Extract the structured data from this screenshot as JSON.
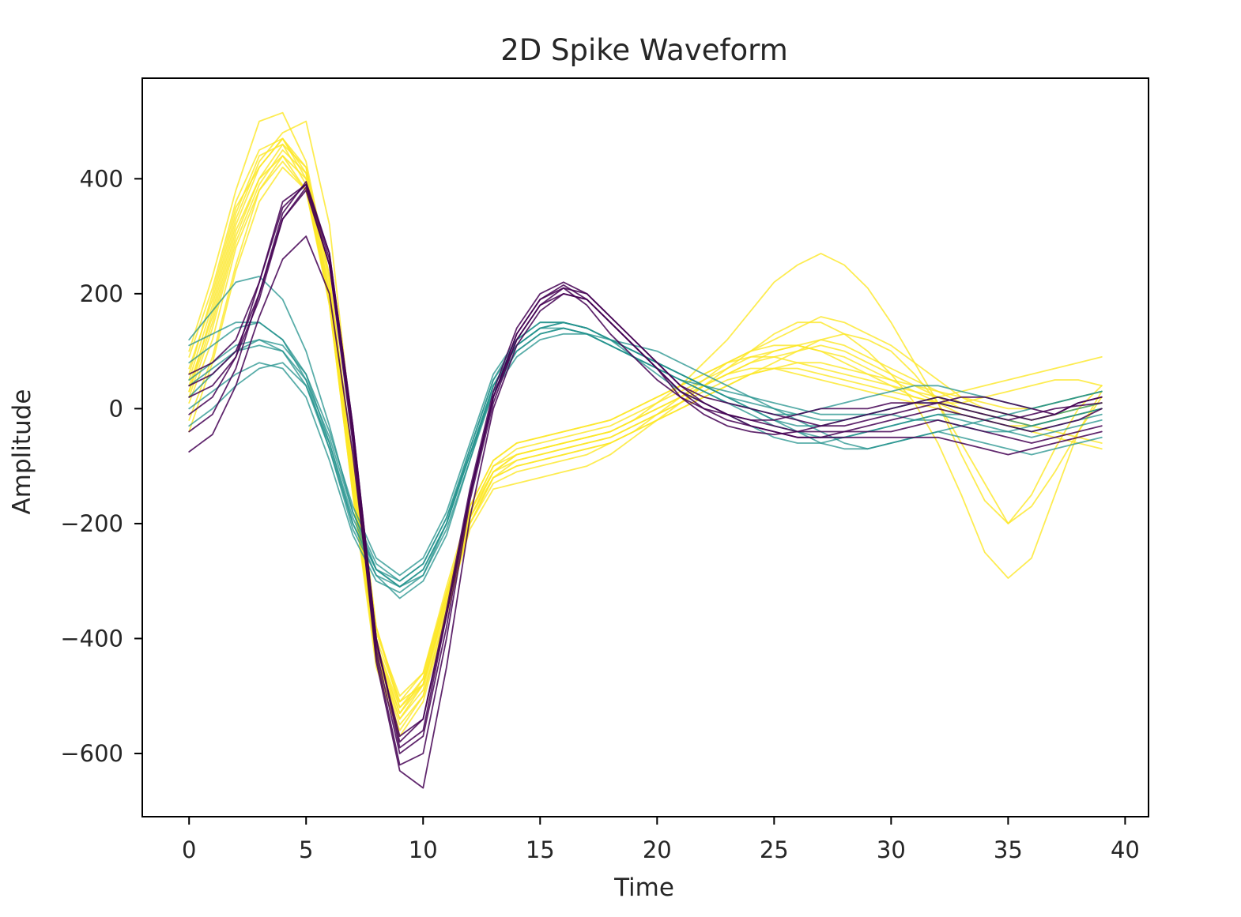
{
  "chart_data": {
    "type": "line",
    "title": "2D Spike Waveform",
    "xlabel": "Time",
    "ylabel": "Amplitude",
    "xlim": [
      -2,
      41
    ],
    "ylim": [
      -710,
      575
    ],
    "xticks": [
      0,
      5,
      10,
      15,
      20,
      25,
      30,
      35,
      40
    ],
    "yticks": [
      -600,
      -400,
      -200,
      0,
      200,
      400
    ],
    "tick_labels_x": [
      "0",
      "5",
      "10",
      "15",
      "20",
      "25",
      "30",
      "35",
      "40"
    ],
    "tick_labels_y": [
      "−600",
      "−400",
      "−200",
      "0",
      "200",
      "400"
    ],
    "grid": false,
    "legend": "none",
    "colors": {
      "purple": "#440154",
      "teal": "#21918c",
      "yellow": "#fde725",
      "axes": "#000000",
      "text": "#262626"
    },
    "series": [
      {
        "color": "purple",
        "values": [
          40,
          60,
          100,
          200,
          340,
          395,
          270,
          -30,
          -400,
          -590,
          -560,
          -360,
          -150,
          20,
          130,
          190,
          215,
          190,
          150,
          110,
          70,
          20,
          -10,
          -30,
          -40,
          -45,
          -40,
          -30,
          -20,
          -10,
          0,
          10,
          10,
          0,
          -10,
          -20,
          -10,
          0,
          5,
          10
        ]
      },
      {
        "color": "purple",
        "values": [
          -10,
          20,
          90,
          220,
          360,
          390,
          260,
          -50,
          -430,
          -620,
          -600,
          -400,
          -160,
          10,
          120,
          180,
          210,
          200,
          160,
          120,
          80,
          40,
          20,
          10,
          0,
          -10,
          -20,
          -30,
          -30,
          -20,
          -10,
          0,
          10,
          20,
          20,
          10,
          0,
          -10,
          10,
          20
        ]
      },
      {
        "color": "purple",
        "values": [
          -40,
          -10,
          70,
          200,
          330,
          380,
          250,
          -60,
          -440,
          -630,
          -660,
          -450,
          -190,
          0,
          110,
          170,
          200,
          190,
          150,
          110,
          70,
          30,
          0,
          -20,
          -30,
          -40,
          -50,
          -50,
          -40,
          -30,
          -20,
          -10,
          0,
          -10,
          -20,
          -30,
          -40,
          -30,
          -20,
          0
        ]
      },
      {
        "color": "purple",
        "values": [
          -75,
          -45,
          40,
          160,
          260,
          300,
          200,
          -80,
          -420,
          -600,
          -570,
          -380,
          -150,
          20,
          130,
          190,
          210,
          180,
          130,
          90,
          50,
          20,
          0,
          -10,
          -20,
          -20,
          -10,
          0,
          0,
          0,
          10,
          10,
          20,
          10,
          0,
          -10,
          -20,
          -10,
          10,
          20
        ]
      },
      {
        "color": "purple",
        "values": [
          60,
          80,
          120,
          220,
          350,
          390,
          270,
          -30,
          -400,
          -580,
          -540,
          -350,
          -140,
          30,
          140,
          200,
          220,
          200,
          160,
          120,
          80,
          40,
          10,
          -10,
          -20,
          -30,
          -40,
          -40,
          -40,
          -40,
          -40,
          -30,
          -20,
          -30,
          -40,
          -50,
          -60,
          -50,
          -40,
          -30
        ]
      },
      {
        "color": "purple",
        "values": [
          20,
          40,
          90,
          190,
          330,
          385,
          250,
          -40,
          -410,
          -570,
          -540,
          -360,
          -150,
          20,
          120,
          180,
          200,
          190,
          150,
          110,
          70,
          30,
          10,
          -10,
          -30,
          -40,
          -50,
          -50,
          -50,
          -50,
          -50,
          -50,
          -50,
          -60,
          -70,
          -80,
          -70,
          -60,
          -50,
          -40
        ]
      },
      {
        "color": "teal",
        "values": [
          120,
          170,
          220,
          230,
          190,
          100,
          -30,
          -180,
          -280,
          -310,
          -280,
          -200,
          -80,
          40,
          100,
          130,
          140,
          130,
          110,
          90,
          70,
          50,
          40,
          30,
          20,
          10,
          0,
          -10,
          -10,
          -10,
          -10,
          -20,
          -20,
          -30,
          -40,
          -40,
          -30,
          -20,
          -10,
          0
        ]
      },
      {
        "color": "teal",
        "values": [
          50,
          80,
          110,
          120,
          100,
          40,
          -70,
          -200,
          -290,
          -330,
          -300,
          -220,
          -90,
          40,
          110,
          140,
          150,
          140,
          120,
          100,
          80,
          60,
          40,
          20,
          0,
          -20,
          -30,
          -30,
          -20,
          -10,
          0,
          10,
          20,
          10,
          0,
          -10,
          -20,
          -10,
          0,
          10
        ]
      },
      {
        "color": "teal",
        "values": [
          0,
          30,
          60,
          80,
          70,
          20,
          -90,
          -220,
          -300,
          -320,
          -290,
          -200,
          -70,
          50,
          120,
          150,
          150,
          140,
          120,
          100,
          80,
          60,
          40,
          20,
          10,
          0,
          -10,
          -20,
          -20,
          -10,
          0,
          10,
          10,
          0,
          -10,
          -20,
          -30,
          -20,
          -10,
          0
        ]
      },
      {
        "color": "teal",
        "values": [
          110,
          130,
          150,
          150,
          120,
          50,
          -70,
          -210,
          -290,
          -310,
          -280,
          -200,
          -80,
          40,
          110,
          140,
          150,
          140,
          120,
          90,
          60,
          30,
          10,
          -10,
          -30,
          -50,
          -60,
          -60,
          -50,
          -40,
          -30,
          -20,
          -10,
          -20,
          -30,
          -40,
          -50,
          -40,
          -30,
          -20
        ]
      },
      {
        "color": "teal",
        "values": [
          -30,
          0,
          40,
          70,
          80,
          40,
          -60,
          -190,
          -280,
          -310,
          -290,
          -210,
          -90,
          30,
          100,
          130,
          140,
          130,
          110,
          90,
          70,
          50,
          30,
          10,
          -10,
          -30,
          -40,
          -50,
          -50,
          -40,
          -30,
          -20,
          -10,
          -10,
          -20,
          -30,
          -40,
          -30,
          -20,
          -10
        ]
      },
      {
        "color": "teal",
        "values": [
          80,
          110,
          140,
          150,
          120,
          60,
          -60,
          -200,
          -280,
          -300,
          -270,
          -190,
          -70,
          50,
          110,
          140,
          140,
          130,
          110,
          90,
          70,
          50,
          30,
          10,
          0,
          -10,
          -10,
          0,
          10,
          20,
          30,
          40,
          40,
          30,
          20,
          10,
          0,
          10,
          20,
          30
        ]
      },
      {
        "color": "teal",
        "values": [
          20,
          60,
          100,
          120,
          110,
          60,
          -40,
          -170,
          -260,
          -290,
          -260,
          -180,
          -60,
          60,
          120,
          150,
          150,
          140,
          120,
          100,
          80,
          60,
          40,
          20,
          0,
          -20,
          -40,
          -60,
          -70,
          -70,
          -60,
          -50,
          -40,
          -50,
          -60,
          -70,
          -80,
          -70,
          -60,
          -50
        ]
      },
      {
        "color": "teal",
        "values": [
          40,
          70,
          100,
          110,
          100,
          50,
          -50,
          -180,
          -270,
          -300,
          -270,
          -190,
          -80,
          30,
          90,
          120,
          130,
          130,
          120,
          110,
          100,
          80,
          60,
          40,
          20,
          0,
          -20,
          -40,
          -60,
          -70,
          -60,
          -50,
          -40,
          -30,
          -20,
          -10,
          0,
          10,
          20,
          30
        ]
      },
      {
        "color": "yellow",
        "values": [
          60,
          200,
          350,
          420,
          470,
          400,
          180,
          -150,
          -430,
          -540,
          -480,
          -330,
          -190,
          -110,
          -80,
          -70,
          -60,
          -50,
          -40,
          -20,
          0,
          20,
          40,
          60,
          80,
          100,
          110,
          120,
          110,
          90,
          70,
          50,
          30,
          10,
          0,
          -10,
          -20,
          -10,
          0,
          10
        ]
      },
      {
        "color": "yellow",
        "values": [
          30,
          150,
          300,
          400,
          460,
          420,
          220,
          -120,
          -420,
          -530,
          -470,
          -320,
          -180,
          -100,
          -70,
          -60,
          -50,
          -40,
          -30,
          -10,
          10,
          30,
          50,
          70,
          90,
          100,
          110,
          100,
          90,
          70,
          50,
          30,
          10,
          -10,
          -20,
          -30,
          -30,
          -20,
          -10,
          0
        ]
      },
      {
        "color": "yellow",
        "values": [
          -20,
          90,
          250,
          380,
          440,
          400,
          200,
          -140,
          -440,
          -560,
          -500,
          -350,
          -200,
          -120,
          -90,
          -80,
          -70,
          -60,
          -50,
          -30,
          -10,
          10,
          30,
          50,
          60,
          70,
          80,
          80,
          70,
          60,
          50,
          40,
          30,
          20,
          10,
          0,
          0,
          10,
          20,
          30
        ]
      },
      {
        "color": "yellow",
        "values": [
          100,
          230,
          380,
          500,
          515,
          430,
          230,
          -100,
          -400,
          -510,
          -460,
          -320,
          -180,
          -100,
          -80,
          -70,
          -60,
          -50,
          -40,
          -20,
          0,
          20,
          40,
          60,
          80,
          90,
          100,
          110,
          100,
          80,
          60,
          40,
          20,
          0,
          -10,
          -20,
          -30,
          -20,
          -10,
          0
        ]
      },
      {
        "color": "yellow",
        "values": [
          50,
          180,
          330,
          430,
          480,
          500,
          320,
          -50,
          -380,
          -520,
          -480,
          -330,
          -170,
          -90,
          -60,
          -50,
          -40,
          -30,
          -20,
          0,
          20,
          40,
          60,
          80,
          100,
          120,
          140,
          160,
          150,
          130,
          110,
          80,
          50,
          20,
          0,
          -10,
          -20,
          -10,
          0,
          10
        ]
      },
      {
        "color": "yellow",
        "values": [
          10,
          120,
          280,
          380,
          430,
          380,
          180,
          -150,
          -450,
          -570,
          -510,
          -360,
          -200,
          -120,
          -100,
          -90,
          -80,
          -70,
          -60,
          -40,
          -20,
          0,
          20,
          40,
          60,
          80,
          100,
          120,
          130,
          120,
          100,
          60,
          10,
          -60,
          -130,
          -200,
          -150,
          -70,
          0,
          40
        ]
      },
      {
        "color": "yellow",
        "values": [
          70,
          190,
          340,
          440,
          460,
          390,
          190,
          -130,
          -410,
          -520,
          -470,
          -320,
          -180,
          -110,
          -90,
          -80,
          -70,
          -60,
          -50,
          -30,
          -10,
          10,
          40,
          70,
          100,
          130,
          150,
          150,
          130,
          100,
          60,
          10,
          -60,
          -150,
          -250,
          -295,
          -260,
          -150,
          -40,
          30
        ]
      },
      {
        "color": "yellow",
        "values": [
          40,
          160,
          310,
          400,
          440,
          380,
          190,
          -130,
          -420,
          -540,
          -490,
          -340,
          -190,
          -110,
          -80,
          -70,
          -60,
          -50,
          -40,
          -20,
          10,
          40,
          80,
          120,
          170,
          220,
          250,
          270,
          250,
          210,
          150,
          80,
          10,
          -80,
          -160,
          -200,
          -170,
          -110,
          -40,
          20
        ]
      },
      {
        "color": "yellow",
        "values": [
          20,
          140,
          290,
          390,
          450,
          410,
          210,
          -120,
          -410,
          -530,
          -480,
          -330,
          -190,
          -120,
          -100,
          -90,
          -80,
          -70,
          -60,
          -40,
          -20,
          0,
          20,
          40,
          60,
          70,
          70,
          60,
          50,
          40,
          30,
          20,
          10,
          0,
          -10,
          -20,
          -30,
          -40,
          -50,
          -60
        ]
      },
      {
        "color": "yellow",
        "values": [
          90,
          210,
          360,
          450,
          470,
          410,
          200,
          -110,
          -390,
          -500,
          -460,
          -310,
          -170,
          -90,
          -60,
          -50,
          -40,
          -30,
          -20,
          0,
          20,
          40,
          60,
          80,
          90,
          90,
          80,
          70,
          60,
          50,
          40,
          30,
          20,
          30,
          40,
          50,
          60,
          70,
          80,
          90
        ]
      },
      {
        "color": "yellow",
        "values": [
          -40,
          80,
          240,
          360,
          420,
          380,
          190,
          -140,
          -430,
          -550,
          -500,
          -350,
          -210,
          -140,
          -130,
          -120,
          -110,
          -100,
          -80,
          -50,
          -20,
          10,
          40,
          60,
          70,
          70,
          60,
          50,
          40,
          30,
          20,
          10,
          0,
          -10,
          -20,
          -30,
          -40,
          -50,
          -60,
          -70
        ]
      },
      {
        "color": "yellow",
        "values": [
          30,
          170,
          320,
          420,
          470,
          420,
          230,
          -90,
          -380,
          -510,
          -480,
          -340,
          -200,
          -130,
          -110,
          -100,
          -90,
          -80,
          -60,
          -40,
          -10,
          20,
          50,
          80,
          100,
          110,
          110,
          100,
          80,
          60,
          40,
          20,
          10,
          10,
          20,
          30,
          40,
          50,
          50,
          40
        ]
      }
    ]
  }
}
